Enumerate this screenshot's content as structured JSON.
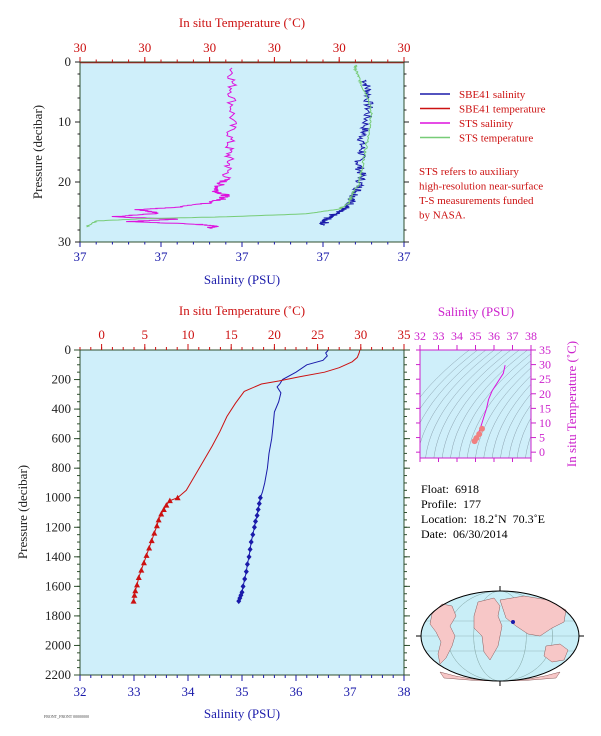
{
  "colors": {
    "panel_bg": "#cfeffa",
    "salinity": "#1a1aaa",
    "temperature": "#cc1111",
    "sts_salinity": "#dd11dd",
    "sts_temperature": "#77cc77",
    "axis_left": "#222222",
    "axis_blue": "#1a1aaa",
    "axis_red": "#cc1111",
    "axis_magenta": "#cc22cc",
    "frame_dark": "#2f4f2f",
    "ts_isopycnal": "#5a6a7a",
    "map_land": "#f7c7c7",
    "map_ocean": "#c9eef7"
  },
  "chart_data": [
    {
      "id": "near-surface-profile",
      "type": "line",
      "top_axis_label": "In situ Temperature (˚C)",
      "top_ticks": [
        "30",
        "30",
        "30",
        "30",
        "30",
        "30"
      ],
      "bottom_axis_label": "Salinity (PSU)",
      "bottom_ticks": [
        "37",
        "37",
        "37",
        "37",
        "37"
      ],
      "ylabel": "Pressure (decibar)",
      "y_ticks": [
        "0",
        "10",
        "20",
        "30"
      ],
      "ylim": [
        0,
        30
      ],
      "legend_placement": "right",
      "legend": [
        {
          "label": "SBE41 salinity",
          "color": "#1a1aaa"
        },
        {
          "label": "SBE41 temperature",
          "color": "#cc1111"
        },
        {
          "label": "STS salinity",
          "color": "#dd11dd"
        },
        {
          "label": "STS temperature",
          "color": "#77cc77"
        }
      ],
      "note": [
        "STS refers to auxiliary",
        "high-resolution near-surface",
        "T-S measurements funded",
        "by NASA."
      ],
      "series": [
        {
          "name": "SBE41 salinity",
          "color": "#1a1aaa",
          "x_frac": [
            0.88,
            0.89,
            0.89,
            0.88,
            0.87,
            0.87,
            0.86,
            0.87,
            0.86,
            0.85,
            0.84,
            0.83,
            0.8,
            0.78,
            0.76,
            0.75
          ],
          "p": [
            3,
            5,
            8,
            11,
            13,
            15,
            17,
            19,
            21,
            22,
            23,
            24,
            24.8,
            25.5,
            26.2,
            27.2
          ]
        },
        {
          "name": "SBE41 temperature",
          "color": "#cc1111",
          "x_frac": [
            0.85,
            0.85
          ],
          "p": [
            0,
            0
          ]
        },
        {
          "name": "STS salinity",
          "color": "#dd11dd",
          "x_frac": [
            0.47,
            0.47,
            0.47,
            0.46,
            0.46,
            0.45,
            0.43,
            0.42,
            0.45,
            0.44,
            0.4,
            0.3,
            0.18,
            0.25,
            0.1,
            0.3,
            0.15,
            0.35,
            0.42,
            0.4
          ],
          "p": [
            1,
            5,
            10,
            14,
            17,
            19.5,
            20.5,
            21.5,
            22.2,
            22.8,
            23.5,
            24.2,
            24.6,
            25.2,
            25.8,
            26.2,
            26.6,
            27.0,
            27.3,
            27.7
          ]
        },
        {
          "name": "STS temperature",
          "color": "#77cc77",
          "x_frac": [
            0.85,
            0.85,
            0.86,
            0.87,
            0.89,
            0.9,
            0.89,
            0.88,
            0.87,
            0.86,
            0.84,
            0.83,
            0.8,
            0.7,
            0.45,
            0.2,
            0.05,
            0.02
          ],
          "p": [
            0.5,
            1.2,
            2.5,
            4,
            6,
            9,
            12,
            15,
            18,
            20.5,
            22,
            23.5,
            24.5,
            25.3,
            25.8,
            26.1,
            26.5,
            27.5
          ]
        }
      ]
    },
    {
      "id": "full-depth-profile",
      "type": "line",
      "top_axis_label": "In situ Temperature (˚C)",
      "top_ticks": [
        0,
        5,
        10,
        15,
        20,
        25,
        30,
        35
      ],
      "xlim_top": [
        -2.5,
        35
      ],
      "bottom_axis_label": "Salinity (PSU)",
      "bottom_ticks": [
        32,
        33,
        34,
        35,
        36,
        37,
        38
      ],
      "xlim_bottom": [
        32,
        38
      ],
      "ylabel": "Pressure (decibar)",
      "y_ticks": [
        0,
        200,
        400,
        600,
        800,
        1000,
        1200,
        1400,
        1600,
        1800,
        2000,
        2200
      ],
      "ylim": [
        0,
        2200
      ],
      "series": [
        {
          "name": "",
          "variable": "salinity",
          "color": "#1a1aaa",
          "x": [
            36.6,
            36.55,
            36.58,
            36.5,
            36.2,
            36.0,
            35.75,
            35.7,
            35.65,
            35.72,
            35.68,
            35.6,
            35.58,
            35.55,
            35.5,
            35.47,
            35.42,
            35.38,
            35.34,
            35.32,
            35.3,
            35.28,
            35.25,
            35.23,
            35.2,
            35.17,
            35.15,
            35.13,
            35.1,
            35.08,
            35.05,
            35.02,
            35.0,
            34.98,
            34.96,
            34.94
          ],
          "y": [
            0,
            20,
            40,
            70,
            100,
            150,
            200,
            230,
            250,
            290,
            350,
            420,
            500,
            600,
            700,
            800,
            900,
            960,
            1000,
            1040,
            1080,
            1120,
            1160,
            1200,
            1250,
            1300,
            1350,
            1400,
            1450,
            1500,
            1550,
            1600,
            1640,
            1660,
            1680,
            1700
          ],
          "markers_from_index": 18,
          "marker": "diamond"
        },
        {
          "name": "",
          "variable": "temperature",
          "color": "#cc1111",
          "x": [
            29.9,
            29.8,
            29.6,
            29.0,
            27.5,
            25.8,
            23.0,
            20.5,
            18.5,
            16.5,
            15.5,
            14.5,
            13.7,
            12.8,
            11.8,
            10.8,
            9.8,
            8.8,
            7.9,
            7.5,
            7.2,
            6.9,
            6.6,
            6.4,
            6.1,
            5.8,
            5.5,
            5.2,
            4.9,
            4.6,
            4.3,
            4.1,
            3.9,
            3.8,
            3.7
          ],
          "y": [
            0,
            20,
            50,
            80,
            120,
            150,
            180,
            210,
            230,
            280,
            360,
            450,
            550,
            650,
            750,
            850,
            950,
            1000,
            1020,
            1050,
            1080,
            1110,
            1150,
            1190,
            1240,
            1290,
            1340,
            1390,
            1440,
            1490,
            1540,
            1590,
            1630,
            1660,
            1700
          ],
          "markers_from_index": 17,
          "marker": "triangle"
        }
      ]
    },
    {
      "id": "ts-diagram",
      "type": "scatter",
      "top_axis_label": "Salinity (PSU)",
      "x_ticks": [
        32,
        33,
        34,
        35,
        36,
        37,
        38
      ],
      "xlim": [
        32,
        38
      ],
      "right_axis_label": "In situ Temperature (˚C)",
      "y_ticks": [
        0,
        5,
        10,
        15,
        20,
        25,
        30,
        35
      ],
      "ylim": [
        -2,
        35
      ],
      "series": [
        {
          "name": "",
          "color": "#dd11dd",
          "x": [
            36.6,
            36.5,
            36.2,
            35.9,
            35.7,
            35.6,
            35.45,
            35.35,
            35.25,
            35.15,
            35.05,
            34.95
          ],
          "y": [
            29.8,
            27.0,
            24.0,
            21.0,
            18.0,
            15.0,
            12.0,
            10.0,
            8.0,
            6.5,
            5.0,
            3.8
          ]
        },
        {
          "name": "",
          "color": "#f08080",
          "x": [
            35.35,
            35.2,
            35.05,
            34.95
          ],
          "y": [
            8.0,
            6.2,
            4.8,
            3.8
          ],
          "marker": "dot"
        }
      ]
    }
  ],
  "float_info": {
    "float_label": "Float:",
    "float_value": "6918",
    "profile_label": "Profile:",
    "profile_value": "177",
    "location_label": "Location:",
    "location_value": "18.2˚N  70.3˚E",
    "date_label": "Date:",
    "date_value": "06/30/2014"
  },
  "footer_text": "FRONT_FRONT 00000000"
}
